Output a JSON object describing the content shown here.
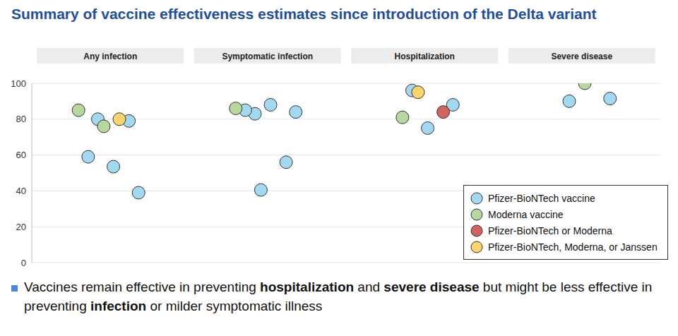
{
  "chart_data": {
    "type": "scatter",
    "title": "Summary of vaccine effectiveness estimates since introduction of the Delta variant",
    "categories": [
      "Any infection",
      "Symptomatic infection",
      "Hospitalization",
      "Severe disease"
    ],
    "series": [
      {
        "name": "Pfizer-BioNTech vaccine",
        "color": "#a3d8f1",
        "x": [
          "Any infection",
          "Any infection",
          "Any infection",
          "Any infection",
          "Any infection",
          "Symptomatic infection",
          "Symptomatic infection",
          "Symptomatic infection",
          "Symptomatic infection",
          "Symptomatic infection",
          "Symptomatic infection",
          "Hospitalization",
          "Hospitalization",
          "Hospitalization",
          "Severe disease",
          "Severe disease"
        ],
        "values": [
          80,
          39,
          53.5,
          59,
          79,
          83,
          84,
          88,
          85,
          56,
          40.5,
          96,
          88,
          75,
          90,
          91.5
        ]
      },
      {
        "name": "Moderna vaccine",
        "color": "#b7d89d",
        "x": [
          "Any infection",
          "Any infection",
          "Symptomatic infection",
          "Hospitalization",
          "Severe disease"
        ],
        "values": [
          76,
          85,
          86,
          81,
          100
        ]
      },
      {
        "name": "Pfizer-BioNTech or Moderna",
        "color": "#d06262",
        "x": [
          "Hospitalization"
        ],
        "values": [
          84
        ]
      },
      {
        "name": "Pfizer-BioNTech, Moderna, or Janssen",
        "color": "#fcd46c",
        "x": [
          "Any infection",
          "Hospitalization"
        ],
        "values": [
          80,
          95
        ]
      }
    ],
    "ylim": [
      0,
      100
    ],
    "yticks": [
      0,
      20,
      40,
      60,
      80,
      100
    ],
    "grid": true,
    "legend": "lower right",
    "marker": "circle",
    "footnote": [
      {
        "text": "Vaccines remain effective in preventing "
      },
      {
        "text": "hospitalization",
        "bold": true
      },
      {
        "text": " and "
      },
      {
        "text": "severe disease",
        "bold": true
      },
      {
        "text": " but might be less effective in preventing "
      },
      {
        "text": "infection",
        "bold": true
      },
      {
        "text": " or milder symptomatic illness"
      }
    ]
  }
}
